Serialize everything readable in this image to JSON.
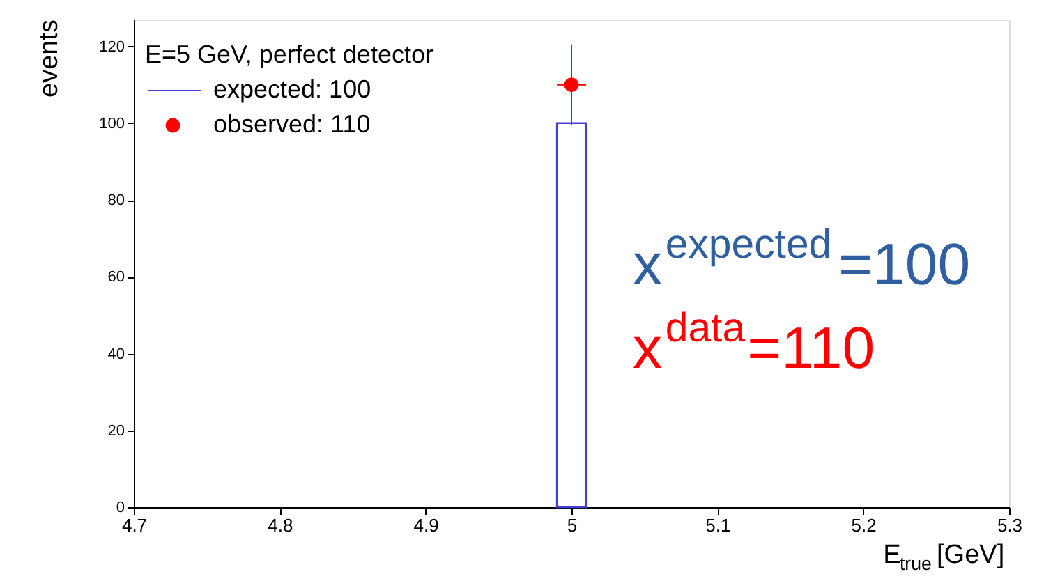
{
  "chart_data": {
    "type": "histogram",
    "xlabel": "E$_{true}$ [GeV]",
    "ylabel": "events",
    "legend_title": "E=5 GeV, perfect detector",
    "xlim": [
      4.7,
      5.3
    ],
    "xticks": [
      4.7,
      4.8,
      4.9,
      5,
      5.1,
      5.2,
      5.3
    ],
    "ylim": [
      0,
      127
    ],
    "yticks": [
      0,
      20,
      40,
      60,
      80,
      100,
      120
    ],
    "series": [
      {
        "name": "expected: 100",
        "bins": [
          4.99,
          5.01
        ],
        "values": [
          100
        ],
        "color": "#3f3fd6"
      },
      {
        "name": "observed: 110",
        "type": "scatter",
        "x": [
          5
        ],
        "values": [
          110
        ],
        "errors": [
          10.5
        ],
        "xerrors": [
          0.01
        ],
        "color": "#ff0000",
        "marker": "circle"
      }
    ],
    "annotations": [
      "x$^{expected}$=100",
      "x$^{data}$=110"
    ],
    "legend": "top left",
    "grid": false
  }
}
